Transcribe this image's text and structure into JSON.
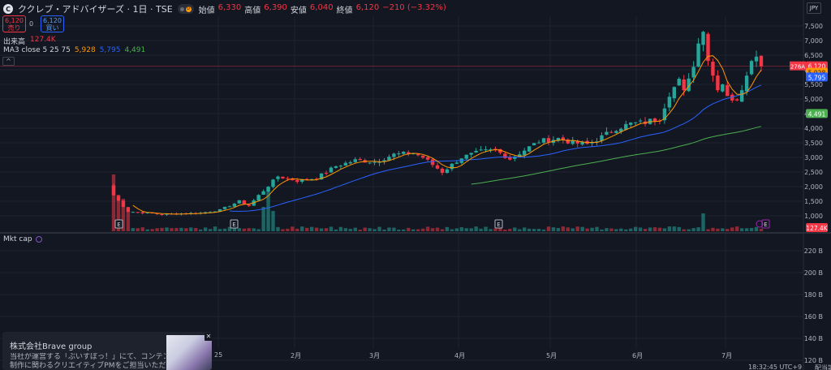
{
  "header": {
    "symbol_icon": "C",
    "symbol_title": "ククレブ・アドバイザーズ · 1日 · TSE",
    "ohlc": [
      {
        "key": "始値",
        "value": "6,330"
      },
      {
        "key": "高値",
        "value": "6,390"
      },
      {
        "key": "安値",
        "value": "6,040"
      },
      {
        "key": "終値",
        "value": "6,120"
      },
      {
        "key": "",
        "value": "−210 (−3.32%)"
      }
    ]
  },
  "trade": {
    "sell_price": "6,120",
    "sell_label": "売り",
    "spread": "0",
    "buy_price": "6,120",
    "buy_label": "買い"
  },
  "volume_legend": {
    "label": "出来高",
    "value": "127.4K"
  },
  "ma_legend": {
    "label": "MA3 close 5 25 75",
    "ma5": "5,928",
    "ma25": "5,795",
    "ma75": "4,491"
  },
  "currency": "JPY",
  "mktcap_label": "Mkt cap",
  "popup": {
    "title": "株式会社Brave group",
    "line1": "当社が運営する「ぶいすぽっ！」にて、コンテンツ",
    "line2": "制作に関わるクリエイティブPMをご担当いただく…",
    "close": "✕"
  },
  "colors": {
    "up": "#26a69a",
    "down": "#f23645",
    "ma5": "#ff9800",
    "ma25": "#2962ff",
    "ma75": "#4caf50"
  },
  "price_badges": {
    "countdown": "276A",
    "last": "6,120",
    "ma5": "5,928",
    "ma25": "5,795",
    "ma75": "4,491",
    "volume": "127.4K"
  },
  "x_axis_labels": [
    {
      "text": "25",
      "x": "partial"
    },
    {
      "text": "2月"
    },
    {
      "text": "3月"
    },
    {
      "text": "4月"
    },
    {
      "text": "5月"
    },
    {
      "text": "6月"
    },
    {
      "text": "7月"
    }
  ],
  "bottom_right": {
    "time": "18:32:45 UTC+9",
    "adj": "配当調整"
  },
  "event_markers": [
    "E",
    "E",
    "E",
    "E"
  ],
  "chart_data": {
    "type": "candlestick",
    "price_axis": {
      "labels": [
        "7,500",
        "7,000",
        "6,500",
        "6,000",
        "5,500",
        "5,000",
        "4,500",
        "4,000",
        "3,500",
        "3,000",
        "2,500",
        "2,000",
        "1,500",
        "1,000"
      ],
      "ylim": [
        500,
        7700
      ]
    },
    "mktcap_axis": {
      "labels": [
        "220 B",
        "200 B",
        "180 B",
        "160 B",
        "140 B",
        "120 B"
      ]
    },
    "last_close": 6120,
    "ma5_last": 5928,
    "ma25_last": 5795,
    "ma75_last": 4491,
    "volume_last": "127.4K"
  }
}
